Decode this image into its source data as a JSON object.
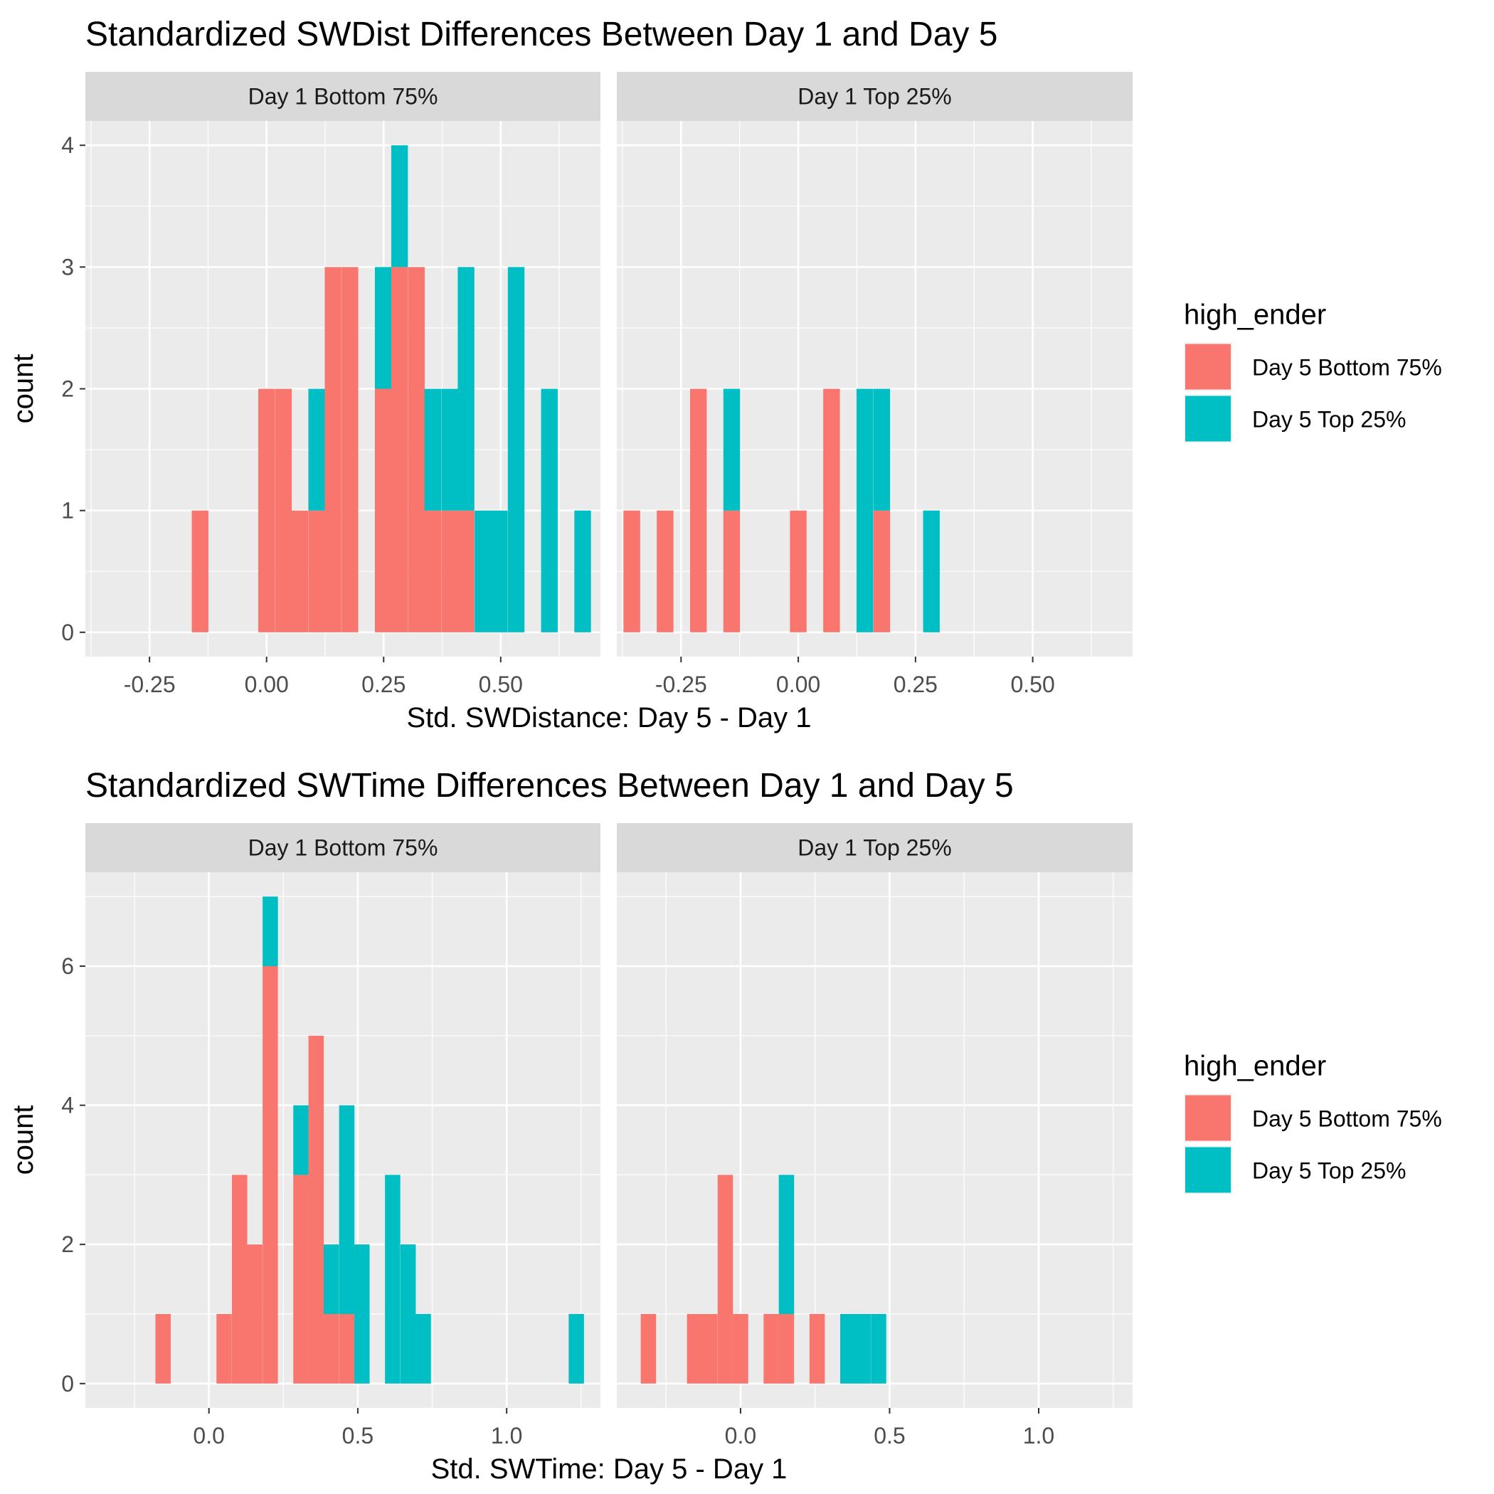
{
  "chart_data": [
    {
      "type": "histogram",
      "title": "Standardized SWDist Differences Between Day 1 and Day 5",
      "xlabel": "Std. SWDistance: Day 5 - Day 1",
      "ylabel": "count",
      "xlim": [
        -0.387,
        0.713
      ],
      "ylim": [
        -0.2,
        4.2
      ],
      "xticks": [
        -0.25,
        0,
        0.25,
        0.5
      ],
      "xtick_labels": [
        "-0.25",
        "0.00",
        "0.25",
        "0.50"
      ],
      "yticks": [
        0,
        1,
        2,
        3,
        4
      ],
      "ytick_labels": [
        "0",
        "1",
        "2",
        "3",
        "4"
      ],
      "bin_width": 0.0355,
      "stacking": "stacked",
      "legend": {
        "title": "high_ender",
        "position": "right"
      },
      "grid": true,
      "series": [
        {
          "name": "Day 5 Bottom 75%",
          "color": "#F8766D"
        },
        {
          "name": "Day 5 Top 25%",
          "color": "#00BFC4"
        }
      ],
      "panels": [
        {
          "label": "Day 1 Bottom 75%",
          "bins": [
            {
              "x": -0.142,
              "counts": [
                1,
                0
              ]
            },
            {
              "x": 0.0,
              "counts": [
                2,
                0
              ]
            },
            {
              "x": 0.036,
              "counts": [
                2,
                0
              ]
            },
            {
              "x": 0.071,
              "counts": [
                1,
                0
              ]
            },
            {
              "x": 0.107,
              "counts": [
                1,
                1
              ]
            },
            {
              "x": 0.142,
              "counts": [
                3,
                0
              ]
            },
            {
              "x": 0.178,
              "counts": [
                3,
                0
              ]
            },
            {
              "x": 0.249,
              "counts": [
                2,
                1
              ]
            },
            {
              "x": 0.284,
              "counts": [
                3,
                1
              ]
            },
            {
              "x": 0.32,
              "counts": [
                3,
                0
              ]
            },
            {
              "x": 0.355,
              "counts": [
                1,
                1
              ]
            },
            {
              "x": 0.391,
              "counts": [
                1,
                1
              ]
            },
            {
              "x": 0.426,
              "counts": [
                1,
                2
              ]
            },
            {
              "x": 0.462,
              "counts": [
                0,
                1
              ]
            },
            {
              "x": 0.497,
              "counts": [
                0,
                1
              ]
            },
            {
              "x": 0.533,
              "counts": [
                0,
                3
              ]
            },
            {
              "x": 0.604,
              "counts": [
                0,
                2
              ]
            },
            {
              "x": 0.675,
              "counts": [
                0,
                1
              ]
            }
          ]
        },
        {
          "label": "Day 1 Top 25%",
          "bins": [
            {
              "x": -0.355,
              "counts": [
                1,
                0
              ]
            },
            {
              "x": -0.284,
              "counts": [
                1,
                0
              ]
            },
            {
              "x": -0.213,
              "counts": [
                2,
                0
              ]
            },
            {
              "x": -0.142,
              "counts": [
                1,
                1
              ]
            },
            {
              "x": 0.0,
              "counts": [
                1,
                0
              ]
            },
            {
              "x": 0.071,
              "counts": [
                2,
                0
              ]
            },
            {
              "x": 0.142,
              "counts": [
                0,
                2
              ]
            },
            {
              "x": 0.178,
              "counts": [
                1,
                1
              ]
            },
            {
              "x": 0.284,
              "counts": [
                0,
                1
              ]
            }
          ]
        }
      ]
    },
    {
      "type": "histogram",
      "title": "Standardized SWTime Differences Between Day 1 and Day 5",
      "xlabel": "Std. SWTime: Day 5 - Day 1",
      "ylabel": "count",
      "xlim": [
        -0.415,
        1.315
      ],
      "ylim": [
        -0.35,
        7.35
      ],
      "xticks": [
        0,
        0.5,
        1
      ],
      "xtick_labels": [
        "0.0",
        "0.5",
        "1.0"
      ],
      "yticks": [
        0,
        2,
        4,
        6
      ],
      "ytick_labels": [
        "0",
        "2",
        "4",
        "6"
      ],
      "bin_width": 0.0514,
      "stacking": "stacked",
      "legend": {
        "title": "high_ender",
        "position": "right"
      },
      "grid": true,
      "series": [
        {
          "name": "Day 5 Bottom 75%",
          "color": "#F8766D"
        },
        {
          "name": "Day 5 Top 25%",
          "color": "#00BFC4"
        }
      ],
      "panels": [
        {
          "label": "Day 1 Bottom 75%",
          "bins": [
            {
              "x": -0.154,
              "counts": [
                1,
                0
              ]
            },
            {
              "x": 0.051,
              "counts": [
                1,
                0
              ]
            },
            {
              "x": 0.103,
              "counts": [
                3,
                0
              ]
            },
            {
              "x": 0.154,
              "counts": [
                2,
                0
              ]
            },
            {
              "x": 0.206,
              "counts": [
                6,
                1
              ]
            },
            {
              "x": 0.309,
              "counts": [
                3,
                1
              ]
            },
            {
              "x": 0.36,
              "counts": [
                5,
                0
              ]
            },
            {
              "x": 0.411,
              "counts": [
                1,
                1
              ]
            },
            {
              "x": 0.463,
              "counts": [
                1,
                3
              ]
            },
            {
              "x": 0.514,
              "counts": [
                0,
                2
              ]
            },
            {
              "x": 0.617,
              "counts": [
                0,
                3
              ]
            },
            {
              "x": 0.669,
              "counts": [
                0,
                2
              ]
            },
            {
              "x": 0.72,
              "counts": [
                0,
                1
              ]
            },
            {
              "x": 1.234,
              "counts": [
                0,
                1
              ]
            }
          ]
        },
        {
          "label": "Day 1 Top 25%",
          "bins": [
            {
              "x": -0.309,
              "counts": [
                1,
                0
              ]
            },
            {
              "x": -0.154,
              "counts": [
                1,
                0
              ]
            },
            {
              "x": -0.103,
              "counts": [
                1,
                0
              ]
            },
            {
              "x": -0.051,
              "counts": [
                3,
                0
              ]
            },
            {
              "x": 0.0,
              "counts": [
                1,
                0
              ]
            },
            {
              "x": 0.103,
              "counts": [
                1,
                0
              ]
            },
            {
              "x": 0.154,
              "counts": [
                1,
                2
              ]
            },
            {
              "x": 0.257,
              "counts": [
                1,
                0
              ]
            },
            {
              "x": 0.36,
              "counts": [
                0,
                1
              ]
            },
            {
              "x": 0.411,
              "counts": [
                0,
                1
              ]
            },
            {
              "x": 0.463,
              "counts": [
                0,
                1
              ]
            }
          ]
        }
      ]
    }
  ]
}
